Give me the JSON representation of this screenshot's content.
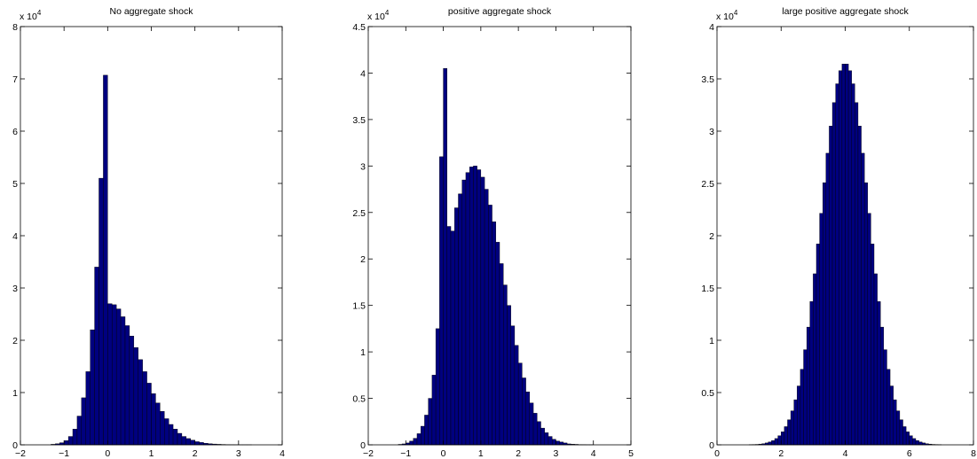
{
  "chart_data": [
    {
      "type": "histogram",
      "title": "No aggregate shock",
      "y_offset_text": "x 10",
      "y_offset_power": "4",
      "color": "#00007f",
      "edgecolor": "#000000",
      "bins": [
        -1.3,
        -1.2,
        -1.1,
        -1.0,
        -0.9,
        -0.8,
        -0.7,
        -0.6,
        -0.5,
        -0.4,
        -0.3,
        -0.2,
        -0.1,
        0.0,
        0.1,
        0.2,
        0.3,
        0.4,
        0.5,
        0.6,
        0.7,
        0.8,
        0.9,
        1.0,
        1.1,
        1.2,
        1.3,
        1.4,
        1.5,
        1.6,
        1.7,
        1.8,
        1.9,
        2.0,
        2.1,
        2.2,
        2.3,
        2.4,
        2.5,
        2.6,
        2.7,
        2.8,
        2.9,
        3.0,
        3.1,
        3.2,
        3.3,
        3.4,
        3.5
      ],
      "counts": [
        0.01,
        0.02,
        0.04,
        0.08,
        0.16,
        0.3,
        0.55,
        0.9,
        1.4,
        2.2,
        3.4,
        5.1,
        7.07,
        2.7,
        2.68,
        2.6,
        2.45,
        2.28,
        2.08,
        1.86,
        1.63,
        1.4,
        1.18,
        0.98,
        0.8,
        0.64,
        0.5,
        0.39,
        0.3,
        0.22,
        0.16,
        0.12,
        0.09,
        0.06,
        0.045,
        0.03,
        0.02,
        0.015,
        0.01,
        0.007,
        0.005,
        0.003,
        0.002,
        0.001,
        0.001,
        0.001,
        0,
        0
      ],
      "xlim": [
        -2,
        4
      ],
      "xticks": [
        {
          "value": -2,
          "label": "−2"
        },
        {
          "value": -1,
          "label": "−1"
        },
        0,
        1,
        2,
        3,
        4
      ],
      "ylim": [
        0,
        8
      ],
      "yticks": [
        0,
        1,
        2,
        3,
        4,
        5,
        6,
        7,
        8
      ]
    },
    {
      "type": "histogram",
      "title": "positive aggregate shock",
      "y_offset_text": "x 10",
      "y_offset_power": "4",
      "color": "#00007f",
      "edgecolor": "#000000",
      "bins": [
        -1.2,
        -1.1,
        -1.0,
        -0.9,
        -0.8,
        -0.7,
        -0.6,
        -0.5,
        -0.4,
        -0.3,
        -0.2,
        -0.1,
        0.0,
        0.1,
        0.2,
        0.3,
        0.4,
        0.5,
        0.6,
        0.7,
        0.8,
        0.9,
        1.0,
        1.1,
        1.2,
        1.3,
        1.4,
        1.5,
        1.6,
        1.7,
        1.8,
        1.9,
        2.0,
        2.1,
        2.2,
        2.3,
        2.4,
        2.5,
        2.6,
        2.7,
        2.8,
        2.9,
        3.0,
        3.1,
        3.2,
        3.3,
        3.4,
        3.5,
        3.6,
        3.7,
        3.8,
        3.9,
        4.0
      ],
      "counts": [
        0.005,
        0.01,
        0.02,
        0.04,
        0.07,
        0.12,
        0.2,
        0.32,
        0.5,
        0.75,
        1.25,
        3.1,
        4.05,
        2.35,
        2.3,
        2.55,
        2.7,
        2.85,
        2.93,
        2.99,
        3.0,
        2.96,
        2.88,
        2.75,
        2.58,
        2.4,
        2.18,
        1.95,
        1.72,
        1.5,
        1.28,
        1.07,
        0.88,
        0.72,
        0.57,
        0.45,
        0.34,
        0.25,
        0.18,
        0.13,
        0.09,
        0.06,
        0.04,
        0.03,
        0.02,
        0.01,
        0.007,
        0.005,
        0.003,
        0.002,
        0.001,
        0.001
      ],
      "xlim": [
        -2,
        5
      ],
      "xticks": [
        {
          "value": -2,
          "label": "−2"
        },
        {
          "value": -1,
          "label": "−1"
        },
        0,
        1,
        2,
        3,
        4,
        5
      ],
      "ylim": [
        0,
        4.5
      ],
      "yticks": [
        0,
        0.5,
        1,
        1.5,
        2,
        2.5,
        3,
        3.5,
        4,
        4.5
      ]
    },
    {
      "type": "histogram",
      "title": "large positive aggregate shock",
      "y_offset_text": "x 10",
      "y_offset_power": "4",
      "color": "#00007f",
      "edgecolor": "#000000",
      "bins": [
        1.0,
        1.1,
        1.2,
        1.3,
        1.4,
        1.5,
        1.6,
        1.7,
        1.8,
        1.9,
        2.0,
        2.1,
        2.2,
        2.3,
        2.4,
        2.5,
        2.6,
        2.7,
        2.8,
        2.9,
        3.0,
        3.1,
        3.2,
        3.3,
        3.4,
        3.5,
        3.6,
        3.7,
        3.8,
        3.9,
        4.0,
        4.1,
        4.2,
        4.3,
        4.4,
        4.5,
        4.6,
        4.7,
        4.8,
        4.9,
        5.0,
        5.1,
        5.2,
        5.3,
        5.4,
        5.5,
        5.6,
        5.7,
        5.8,
        5.9,
        6.0,
        6.1,
        6.2,
        6.3,
        6.4,
        6.5,
        6.6,
        6.7,
        6.8,
        6.9,
        7.0
      ],
      "counts": [
        0.002,
        0.003,
        0.004,
        0.007,
        0.011,
        0.018,
        0.027,
        0.041,
        0.06,
        0.087,
        0.124,
        0.174,
        0.24,
        0.325,
        0.431,
        0.563,
        0.722,
        0.91,
        1.126,
        1.37,
        1.636,
        1.921,
        2.214,
        2.507,
        2.789,
        3.049,
        3.273,
        3.453,
        3.578,
        3.642,
        3.642,
        3.578,
        3.453,
        3.273,
        3.049,
        2.789,
        2.507,
        2.214,
        1.921,
        1.636,
        1.37,
        1.126,
        0.91,
        0.722,
        0.563,
        0.431,
        0.325,
        0.24,
        0.174,
        0.124,
        0.087,
        0.06,
        0.041,
        0.027,
        0.018,
        0.011,
        0.007,
        0.004,
        0.003,
        0.002
      ],
      "xlim": [
        0,
        8
      ],
      "xticks": [
        0,
        2,
        4,
        6,
        8
      ],
      "ylim": [
        0,
        4
      ],
      "yticks": [
        0,
        0.5,
        1,
        1.5,
        2,
        2.5,
        3,
        3.5,
        4
      ]
    }
  ]
}
